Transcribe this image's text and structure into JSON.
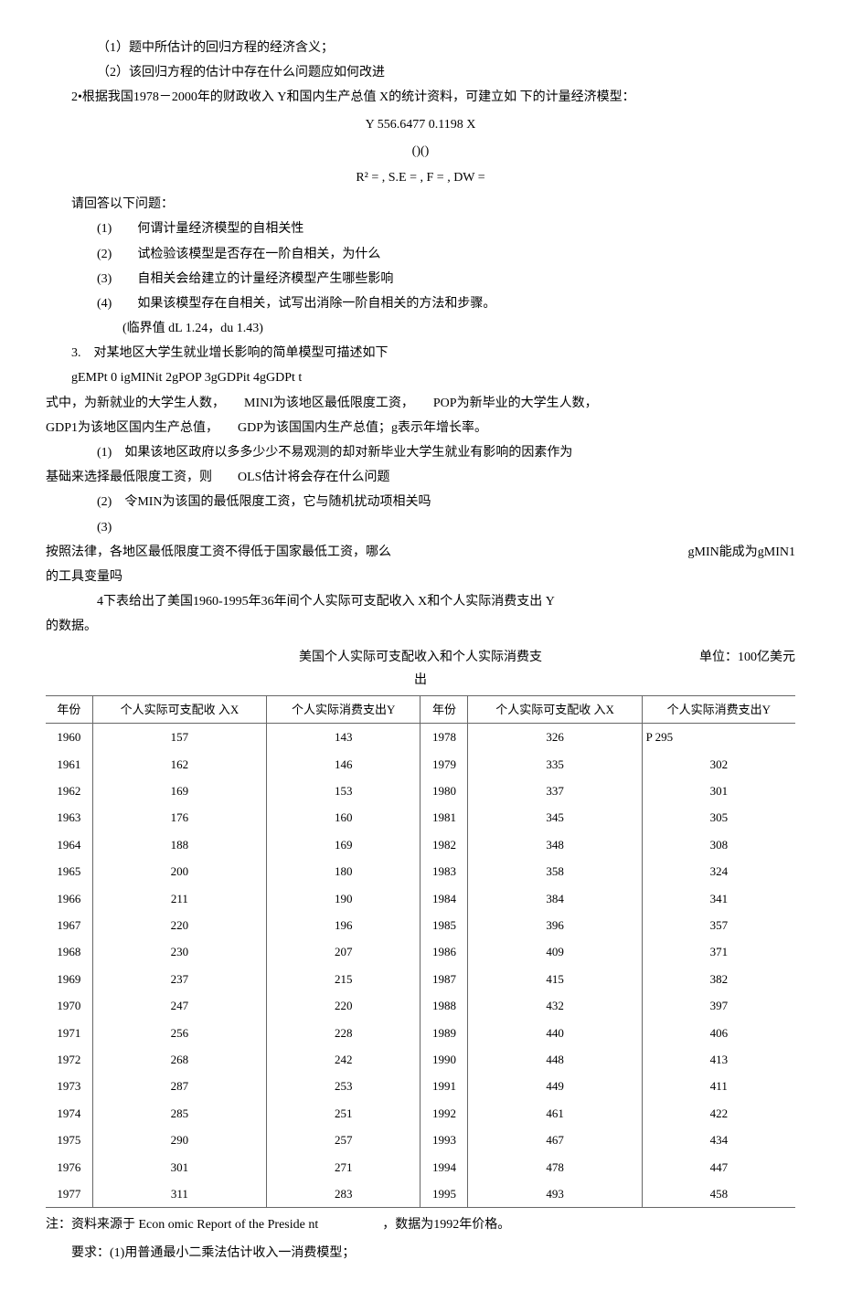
{
  "q1_sub1": "（1）题中所估计的回归方程的经济含义；",
  "q1_sub2": "（2）该回归方程的估计中存在什么问题应如何改进",
  "q2_intro": "2•根据我国1978－2000年的财政收入 Y和国内生产总值 X的统计资料，可建立如 下的计量经济模型：",
  "formula1": "Y 556.6477 0.1198 X",
  "formula2": "()()",
  "formula3": "R² = , S.E = , F = , DW =",
  "q2_ask": "请回答以下问题：",
  "q2_1_no": "(1)",
  "q2_1_txt": "何谓计量经济模型的自相关性",
  "q2_2_no": "(2)",
  "q2_2_txt": "试检验该模型是否存在一阶自相关，为什么",
  "q2_3_no": "(3)",
  "q2_3_txt": "自相关会给建立的计量经济模型产生哪些影响",
  "q2_4_no": "(4)",
  "q2_4_txt": "如果该模型存在自相关，试写出消除一阶自相关的方法和步骤。",
  "q2_crit": "(临界值 dL 1.24，du 1.43)",
  "q3_intro_no": "3.",
  "q3_intro_txt": "对某地区大学生就业增长影响的简单模型可描述如下",
  "q3_formula": "gEMPt 0 igMINit 2gPOP 3gGDPit 4gGDPt t",
  "q3_desc1": "式中，为新就业的大学生人数，　　MINI为该地区最低限度工资，　　POP为新毕业的大学生人数，",
  "q3_desc2": "GDP1为该地区国内生产总值，　　GDP为该国国内生产总值；g表示年增长率。",
  "q3_s1a": "(1)　如果该地区政府以多多少少不易观测的却对新毕业大学生就业有影响的因素作为",
  "q3_s1b": "基础来选择最低限度工资，则　　OLS估计将会存在什么问题",
  "q3_s2": "(2)　令MIN为该国的最低限度工资，它与随机扰动项相关吗",
  "q3_s3": "(3)",
  "q3_s3b1": "按照法律，各地区最低限度工资不得低于国家最低工资，哪么",
  "q3_s3b2": "gMIN能成为gMIN1",
  "q3_s3c": "的工具变量吗",
  "q4_intro": "4下表给出了美国1960-1995年36年间个人实际可支配收入 X和个人实际消费支出 Y",
  "q4_intro2": "的数据。",
  "tbl_title": "美国个人实际可支配收入和个人实际消费支出",
  "tbl_unit": "单位：100亿美元",
  "th_year": "年份",
  "th_x": "个人实际可支配收 入X",
  "th_y": "个人实际消费支出Y",
  "rows": [
    [
      "1960",
      "157",
      "143",
      "1978",
      "326",
      "P 295"
    ],
    [
      "1961",
      "162",
      "146",
      "1979",
      "335",
      "302"
    ],
    [
      "1962",
      "169",
      "153",
      "1980",
      "337",
      "301"
    ],
    [
      "1963",
      "176",
      "160",
      "1981",
      "345",
      "305"
    ],
    [
      "1964",
      "188",
      "169",
      "1982",
      "348",
      "308"
    ],
    [
      "1965",
      "200",
      "180",
      "1983",
      "358",
      "324"
    ],
    [
      "1966",
      "211",
      "190",
      "1984",
      "384",
      "341"
    ],
    [
      "1967",
      "220",
      "196",
      "1985",
      "396",
      "357"
    ],
    [
      "1968",
      "230",
      "207",
      "1986",
      "409",
      "371"
    ],
    [
      "1969",
      "237",
      "215",
      "1987",
      "415",
      "382"
    ],
    [
      "1970",
      "247",
      "220",
      "1988",
      "432",
      "397"
    ],
    [
      "1971",
      "256",
      "228",
      "1989",
      "440",
      "406"
    ],
    [
      "1972",
      "268",
      "242",
      "1990",
      "448",
      "413"
    ],
    [
      "1973",
      "287",
      "253",
      "1991",
      "449",
      "411"
    ],
    [
      "1974",
      "285",
      "251",
      "1992",
      "461",
      "422"
    ],
    [
      "1975",
      "290",
      "257",
      "1993",
      "467",
      "434"
    ],
    [
      "1976",
      "301",
      "271",
      "1994",
      "478",
      "447"
    ],
    [
      "1977",
      "311",
      "283",
      "1995",
      "493",
      "458"
    ]
  ],
  "note": "注：资料来源于 Econ omic Report of the Preside nt　　　　　，数据为1992年价格。",
  "req": "要求：(1)用普通最小二乘法估计收入一消费模型；"
}
